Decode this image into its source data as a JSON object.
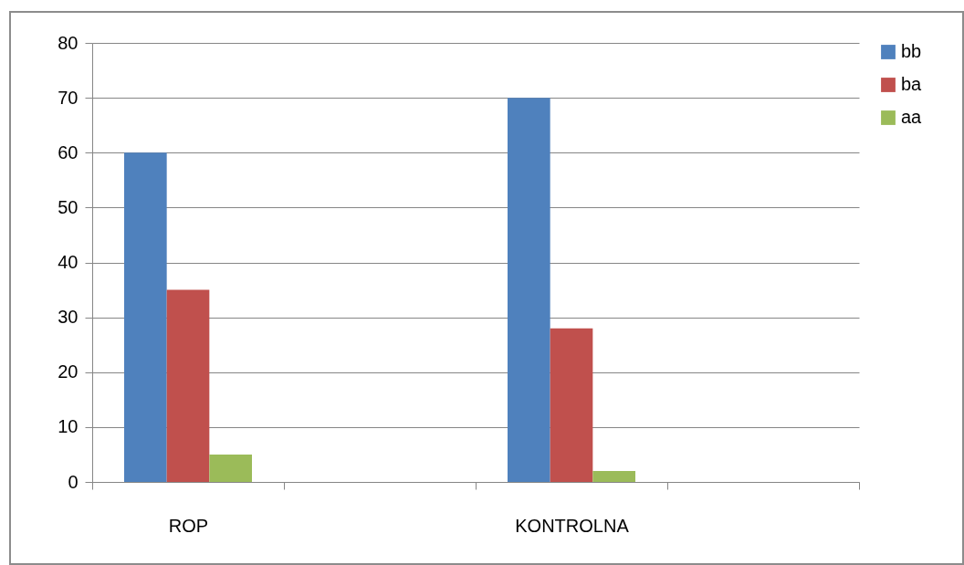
{
  "chart_data": {
    "type": "bar",
    "categories": [
      "ROP",
      null,
      "KONTROLNA",
      null
    ],
    "series": [
      {
        "name": "bb",
        "color": "#4f81bd",
        "values": [
          60,
          null,
          70,
          null
        ]
      },
      {
        "name": "ba",
        "color": "#c0504d",
        "values": [
          35,
          null,
          28,
          null
        ]
      },
      {
        "name": "aa",
        "color": "#9bbb59",
        "values": [
          5,
          null,
          2,
          null
        ]
      }
    ],
    "ylim": [
      0,
      80
    ],
    "yticks": [
      0,
      10,
      20,
      30,
      40,
      50,
      60,
      70,
      80
    ],
    "grid": "y",
    "legend": "right"
  }
}
